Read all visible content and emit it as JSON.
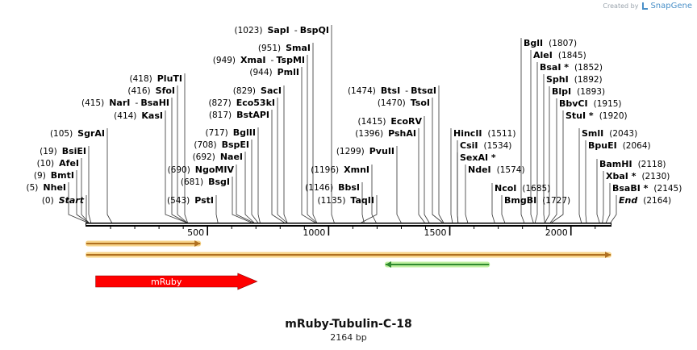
{
  "brand": {
    "created_by": "Created by",
    "product": "SnapGene"
  },
  "plasmid": {
    "name": "mRuby-Tubulin-C-18",
    "size_label": "2164 bp"
  },
  "chart_data": {
    "type": "linear_map",
    "range": [
      0,
      2164
    ],
    "ticks": [
      500,
      1000,
      1500,
      2000
    ],
    "enzymes": [
      {
        "pos": "(0)",
        "name": "Start",
        "site": 0,
        "italic": true
      },
      {
        "pos": "(5)",
        "name": "NheI",
        "site": 5
      },
      {
        "pos": "(9)",
        "name": "BmtI",
        "site": 9
      },
      {
        "pos": "(10)",
        "name": "AfeI",
        "site": 10
      },
      {
        "pos": "(19)",
        "name": "BsiEI",
        "site": 19
      },
      {
        "pos": "(105)",
        "name": "SgrAI",
        "site": 105
      },
      {
        "pos": "(414)",
        "name": "KasI",
        "site": 414
      },
      {
        "pos": "(415)",
        "name": "NarI",
        "name2": "BsaHI",
        "site": 415
      },
      {
        "pos": "(416)",
        "name": "SfoI",
        "site": 416
      },
      {
        "pos": "(418)",
        "name": "PluTI",
        "site": 418
      },
      {
        "pos": "(543)",
        "name": "PstI",
        "site": 543
      },
      {
        "pos": "(681)",
        "name": "BsgI",
        "site": 681
      },
      {
        "pos": "(690)",
        "name": "NgoMIV",
        "site": 690
      },
      {
        "pos": "(692)",
        "name": "NaeI",
        "site": 692
      },
      {
        "pos": "(708)",
        "name": "BspEI",
        "site": 708
      },
      {
        "pos": "(717)",
        "name": "BglII",
        "site": 717
      },
      {
        "pos": "(817)",
        "name": "BstAPI",
        "site": 817
      },
      {
        "pos": "(827)",
        "name": "Eco53kI",
        "site": 827
      },
      {
        "pos": "(829)",
        "name": "SacI",
        "site": 829
      },
      {
        "pos": "(944)",
        "name": "PmlI",
        "site": 944
      },
      {
        "pos": "(949)",
        "name": "XmaI",
        "name2": "TspMI",
        "site": 949
      },
      {
        "pos": "(951)",
        "name": "SmaI",
        "site": 951
      },
      {
        "pos": "(1023)",
        "name": "SapI",
        "name2": "BspQI",
        "site": 1023
      },
      {
        "pos": "(1135)",
        "name": "TaqII",
        "site": 1135
      },
      {
        "pos": "(1146)",
        "name": "BbsI",
        "site": 1146
      },
      {
        "pos": "(1196)",
        "name": "XmnI",
        "site": 1196
      },
      {
        "pos": "(1299)",
        "name": "PvuII",
        "site": 1299
      },
      {
        "pos": "(1396)",
        "name": "PshAI",
        "site": 1396
      },
      {
        "pos": "(1415)",
        "name": "EcoRV",
        "site": 1415
      },
      {
        "pos": "(1470)",
        "name": "TsoI",
        "site": 1470
      },
      {
        "pos": "(1474)",
        "name": "BtsI",
        "name2": "BtsαI",
        "site": 1474
      },
      {
        "pos": "(1511)",
        "name": "HincII",
        "site": 1511,
        "label_first": true
      },
      {
        "pos": "(1534)",
        "name": "CsiI",
        "site": 1534,
        "label_first": true
      },
      {
        "pos": "",
        "name": "SexAI *",
        "site": 1534,
        "label_first": true
      },
      {
        "pos": "(1574)",
        "name": "NdeI",
        "site": 1574,
        "label_first": true
      },
      {
        "pos": "(1685)",
        "name": "NcoI",
        "site": 1685,
        "label_first": true
      },
      {
        "pos": "(1727)",
        "name": "BmgBI",
        "site": 1727,
        "label_first": true
      },
      {
        "pos": "(1807)",
        "name": "BglI",
        "site": 1807,
        "label_first": true
      },
      {
        "pos": "(1845)",
        "name": "AleI",
        "site": 1845,
        "label_first": true
      },
      {
        "pos": "(1852)",
        "name": "BsaI *",
        "site": 1852,
        "label_first": true
      },
      {
        "pos": "(1892)",
        "name": "SphI",
        "site": 1892,
        "label_first": true
      },
      {
        "pos": "(1893)",
        "name": "BlpI",
        "site": 1893,
        "label_first": true
      },
      {
        "pos": "(1915)",
        "name": "BbvCI",
        "site": 1915,
        "label_first": true
      },
      {
        "pos": "(1920)",
        "name": "StuI *",
        "site": 1920,
        "label_first": true
      },
      {
        "pos": "(2043)",
        "name": "SmlI",
        "site": 2043,
        "label_first": true
      },
      {
        "pos": "(2064)",
        "name": "BpuEI",
        "site": 2064,
        "label_first": true
      },
      {
        "pos": "(2118)",
        "name": "BamHI",
        "site": 2118,
        "label_first": true
      },
      {
        "pos": "(2130)",
        "name": "XbaI *",
        "site": 2130,
        "label_first": true
      },
      {
        "pos": "(2145)",
        "name": "BsaBI *",
        "site": 2145,
        "label_first": true
      },
      {
        "pos": "(2164)",
        "name": "End",
        "site": 2164,
        "label_first": true,
        "italic": true
      }
    ],
    "features": [
      {
        "name": "orf-short",
        "start": 0,
        "end": 470,
        "direction": "forward",
        "color": "#b07020",
        "glow": "#f7d48a"
      },
      {
        "name": "orf-long",
        "start": 0,
        "end": 2164,
        "direction": "forward",
        "color": "#b07020",
        "glow": "#f7d48a"
      },
      {
        "name": "orf-reverse",
        "start": 1235,
        "end": 1662,
        "direction": "reverse",
        "color": "#2f8a2f",
        "glow": "#bff0a0"
      },
      {
        "name": "mRuby",
        "start": 22,
        "end": 705,
        "direction": "forward",
        "color": "#ff0000",
        "label": "mRuby",
        "block": true
      }
    ]
  }
}
